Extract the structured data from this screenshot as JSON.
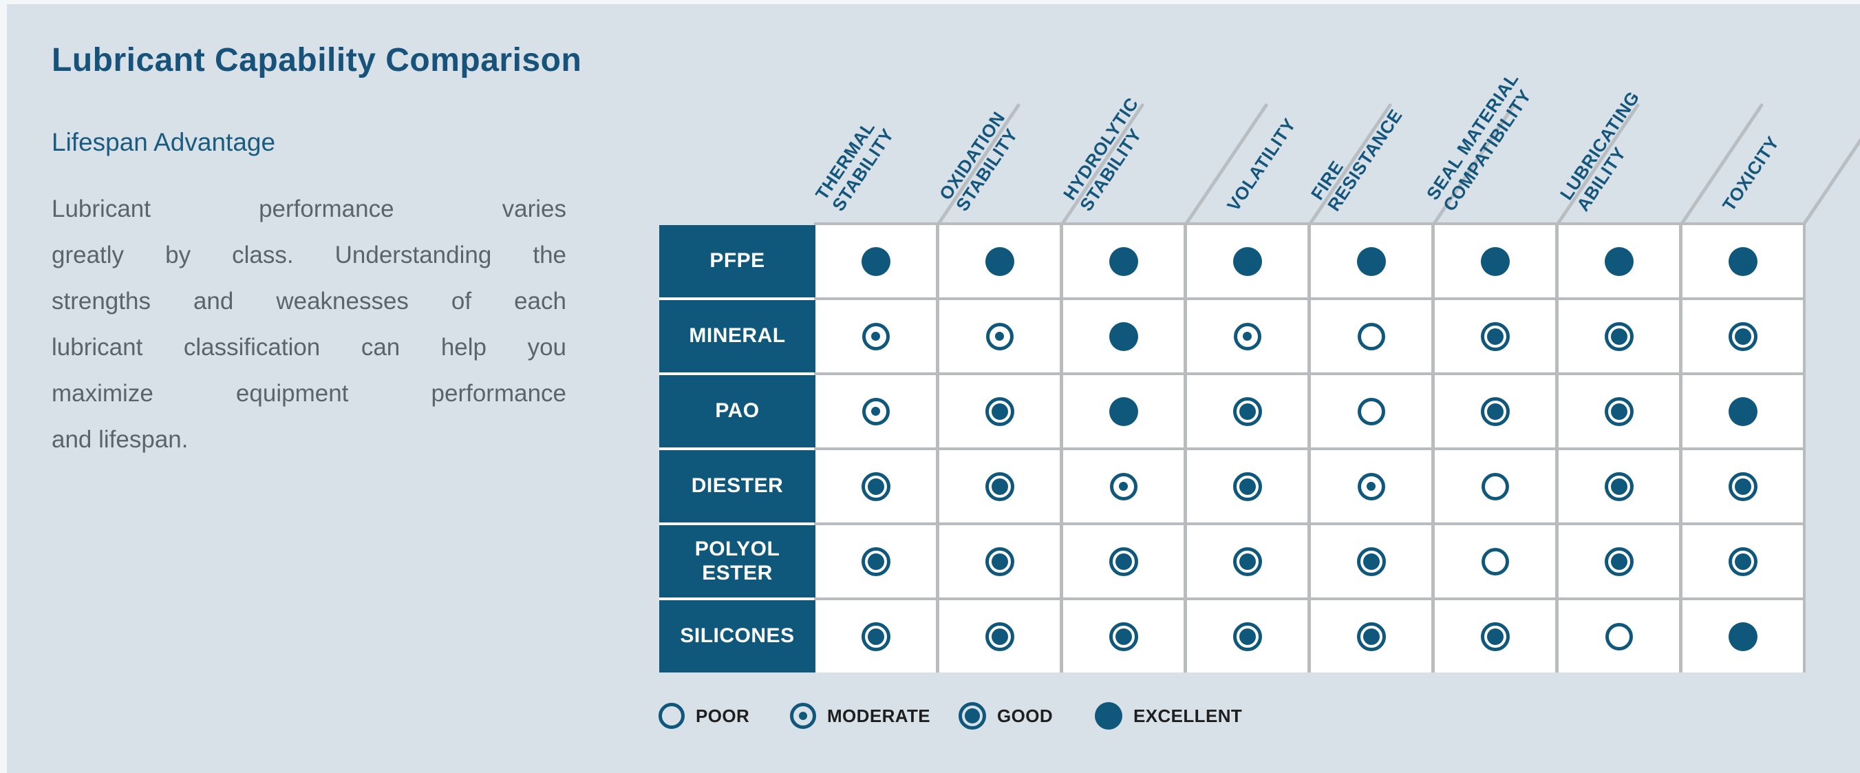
{
  "page": {
    "title": "Lubricant Capability Comparison",
    "subtitle": "Lifespan Advantage",
    "body_wrapped": "Lubricant performance varies\ngreatly by class. Understanding the\nstrengths and weaknesses of each\nlubricant classification can help you\nmaximize equipment performance",
    "body_last_line": "and lifespan."
  },
  "chart_data": {
    "type": "table",
    "title": "Lubricant Capability Comparison",
    "subtitle": "Lifespan Advantage",
    "rating_scale": [
      "poor",
      "moderate",
      "good",
      "excellent"
    ],
    "columns": [
      "THERMAL\nSTABILITY",
      "OXIDATION\nSTABILITY",
      "HYDROLYTIC\nSTABILITY",
      "VOLATILITY",
      "FIRE\nRESISTANCE",
      "SEAL MATERIAL\nCOMPATIBILITY",
      "LUBRICATING\nABILITY",
      "TOXICITY"
    ],
    "rows": [
      {
        "label": "PFPE",
        "ratings": [
          "excellent",
          "excellent",
          "excellent",
          "excellent",
          "excellent",
          "excellent",
          "excellent",
          "excellent"
        ]
      },
      {
        "label": "MINERAL",
        "ratings": [
          "moderate",
          "moderate",
          "excellent",
          "moderate",
          "poor",
          "good",
          "good",
          "good"
        ]
      },
      {
        "label": "PAO",
        "ratings": [
          "moderate",
          "good",
          "excellent",
          "good",
          "poor",
          "good",
          "good",
          "excellent"
        ]
      },
      {
        "label": "DIESTER",
        "ratings": [
          "good",
          "good",
          "moderate",
          "good",
          "moderate",
          "poor",
          "good",
          "good"
        ]
      },
      {
        "label": "POLYOL ESTER",
        "ratings": [
          "good",
          "good",
          "good",
          "good",
          "good",
          "poor",
          "good",
          "good"
        ]
      },
      {
        "label": "SILICONES",
        "ratings": [
          "good",
          "good",
          "good",
          "good",
          "good",
          "good",
          "poor",
          "excellent"
        ]
      }
    ],
    "legend": [
      {
        "key": "poor",
        "label": "POOR"
      },
      {
        "key": "moderate",
        "label": "MODERATE"
      },
      {
        "key": "good",
        "label": "GOOD"
      },
      {
        "key": "excellent",
        "label": "EXCELLENT"
      }
    ],
    "layout_hints": {
      "grid": "on",
      "legend_position": "bottom",
      "header_rotation_deg": -56
    }
  },
  "colors": {
    "background": "#D9E1E8",
    "accent_blue": "#0F587C",
    "title_blue": "#17527A",
    "body_gray": "#5A646C",
    "grid_gray": "#B9BCBE",
    "legend_text": "#1E1E1E",
    "cell_white": "#FFFFFF"
  }
}
